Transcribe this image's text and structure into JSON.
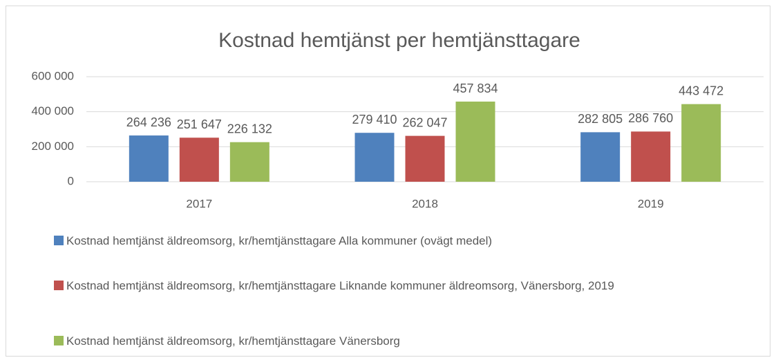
{
  "chart_data": {
    "type": "bar",
    "title": "Kostnad hemtjänst per hemtjänsttagare",
    "categories": [
      "2017",
      "2018",
      "2019"
    ],
    "series": [
      {
        "name": "Kostnad hemtjänst äldreomsorg, kr/hemtjänsttagare Alla kommuner (ovägt medel)",
        "color": "#4f81bd",
        "values": [
          264236,
          279410,
          282805
        ],
        "value_labels": [
          "264 236",
          "279 410",
          "282 805"
        ]
      },
      {
        "name": "Kostnad hemtjänst äldreomsorg, kr/hemtjänsttagare Liknande kommuner äldreomsorg, Vänersborg, 2019",
        "color": "#c0504d",
        "values": [
          251647,
          262047,
          286760
        ],
        "value_labels": [
          "251 647",
          "262 047",
          "286 760"
        ]
      },
      {
        "name": "Kostnad hemtjänst äldreomsorg, kr/hemtjänsttagare Vänersborg",
        "color": "#9bbb59",
        "values": [
          226132,
          457834,
          443472
        ],
        "value_labels": [
          "226 132",
          "457 834",
          "443 472"
        ]
      }
    ],
    "ylim": [
      0,
      600000
    ],
    "yticks": [
      0,
      {
        "value": 200000,
        "label": "200 000"
      },
      {
        "value": 400000,
        "label": "400 000"
      },
      {
        "value": 600000,
        "label": "600 000"
      }
    ],
    "grid": true,
    "legend": "bottom"
  }
}
